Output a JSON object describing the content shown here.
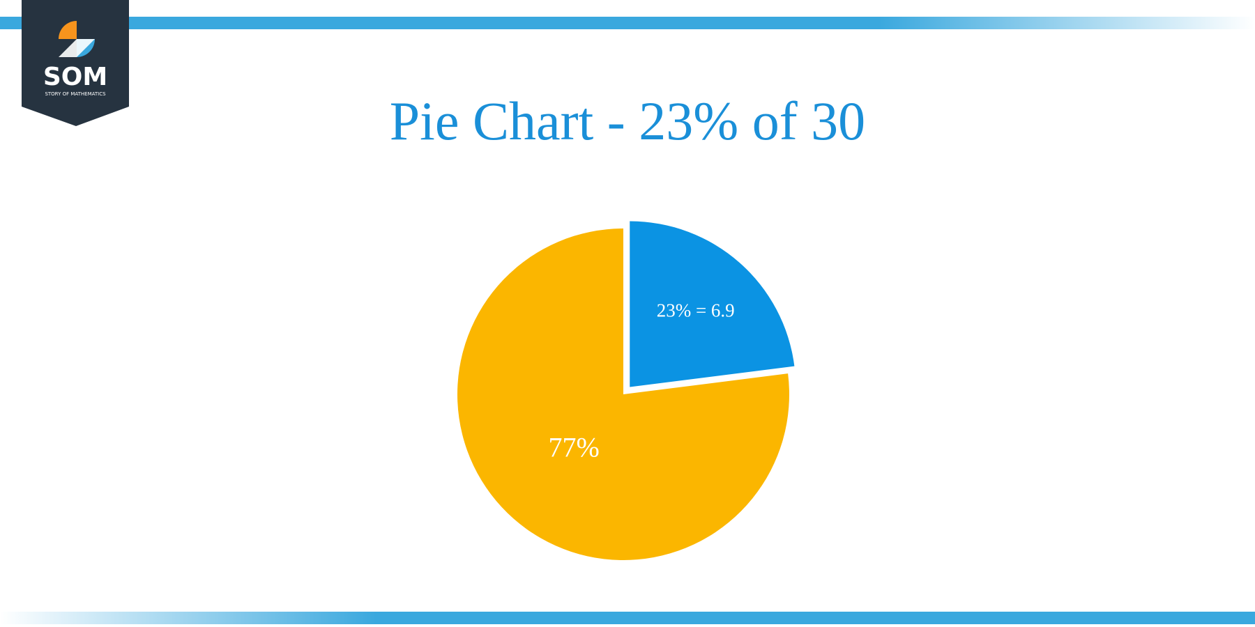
{
  "logo": {
    "name": "SOM",
    "tagline": "STORY OF MATHEMATICS"
  },
  "chart_data": {
    "type": "pie",
    "title": "Pie Chart - 23% of 30",
    "values": [
      23,
      77
    ],
    "value_labels": [
      "23% = 6.9",
      "77%"
    ],
    "colors": [
      "#0b93e3",
      "#fbb600"
    ]
  }
}
